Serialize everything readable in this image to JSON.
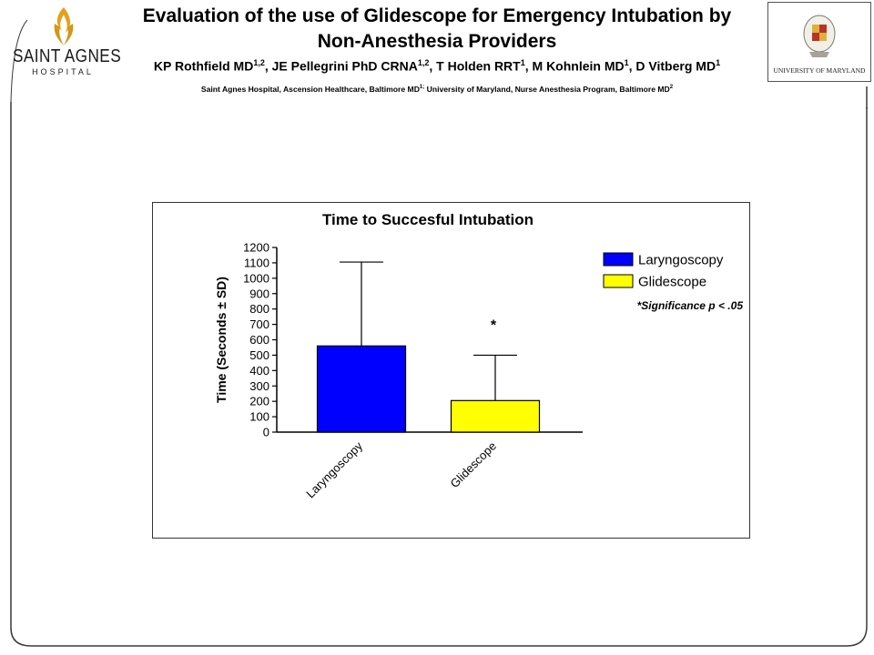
{
  "header": {
    "left_logo": {
      "brand": "SAINT AGNES",
      "sub": "HOSPITAL",
      "icon": "flame-figure-logo-icon"
    },
    "title_line1": "Evaluation of the use of Glidescope for Emergency Intubation by",
    "title_line2": "Non-Anesthesia Providers",
    "authors": "KP Rothfield MD<sup>1,2</sup>, JE Pellegrini PhD CRNA<sup>1,2</sup>, T Holden RRT<sup>1</sup>, M Kohnlein MD<sup>1</sup>, D Vitberg MD<sup>1</sup>",
    "affiliations": "Saint Agnes Hospital, Ascension Healthcare, Baltimore MD<sup>1;</sup> University of Maryland, Nurse Anesthesia Program, Baltimore MD<sup>2</sup>",
    "right_logo": {
      "text": "UNIVERSITY OF MARYLAND",
      "icon": "university-seal-icon"
    }
  },
  "chart_data": {
    "type": "bar",
    "title": "Time to Succesful Intubation",
    "ylabel": "Time (Seconds ± SD)",
    "xlabel": "",
    "categories": [
      "Laryngoscopy",
      "Glidescope"
    ],
    "values": [
      560,
      205
    ],
    "error_sd": [
      545,
      295
    ],
    "colors": [
      "#0000ff",
      "#ffff00"
    ],
    "ylim": [
      0,
      1200
    ],
    "yticks": [
      0,
      100,
      200,
      300,
      400,
      500,
      600,
      700,
      800,
      900,
      1000,
      1100,
      1200
    ],
    "grid": false,
    "legend": {
      "placement": "top-right",
      "entries": [
        {
          "label": "Laryngoscopy",
          "color": "#0000ff"
        },
        {
          "label": "Glidescope",
          "color": "#ffff00"
        }
      ],
      "note": "*Significance p < .05"
    },
    "annotations": [
      {
        "category": "Glidescope",
        "text": "*"
      }
    ]
  }
}
